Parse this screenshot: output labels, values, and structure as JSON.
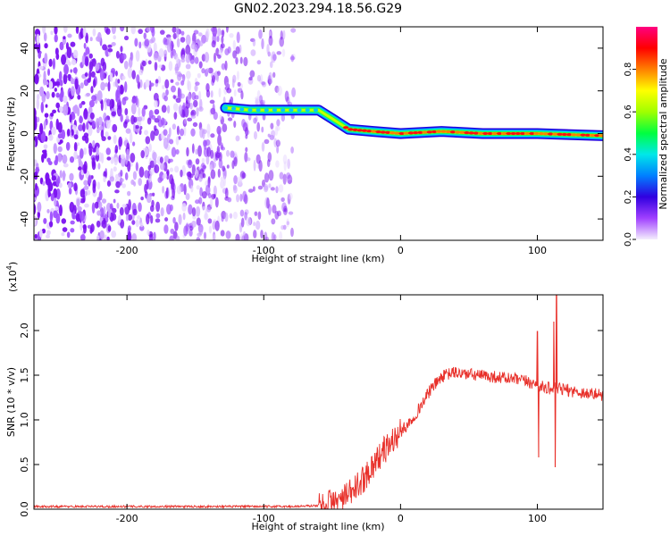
{
  "title": "GN02.2023.294.18.56.G29",
  "chart_data": [
    {
      "type": "heatmap",
      "ylabel": "Frequency (Hz)",
      "xlabel": "Height of straight line (km)",
      "xlim": [
        -268,
        148
      ],
      "ylim": [
        -50,
        50
      ],
      "x_ticks": [
        -200,
        -100,
        0,
        100
      ],
      "y_ticks": [
        -40,
        -20,
        0,
        20,
        40
      ],
      "ridge_points": [
        {
          "x": -128,
          "y": 12
        },
        {
          "x": -110,
          "y": 11
        },
        {
          "x": -90,
          "y": 11
        },
        {
          "x": -72,
          "y": 11
        },
        {
          "x": -60,
          "y": 11
        },
        {
          "x": -50,
          "y": 7
        },
        {
          "x": -38,
          "y": 2
        },
        {
          "x": -20,
          "y": 1
        },
        {
          "x": 0,
          "y": 0
        },
        {
          "x": 30,
          "y": 1
        },
        {
          "x": 60,
          "y": 0
        },
        {
          "x": 100,
          "y": 0
        },
        {
          "x": 148,
          "y": -1
        }
      ],
      "noise_extent_x": [
        -268,
        -78
      ],
      "colorbar": {
        "label": "Normalized spectral amplitude",
        "range": [
          0.0,
          1.0
        ],
        "ticks": [
          0.0,
          0.2,
          0.4,
          0.6,
          0.8
        ],
        "colormap": [
          "#f4eefd",
          "#a040ff",
          "#3000e0",
          "#0080ff",
          "#00e8e8",
          "#00ff40",
          "#a0ff00",
          "#ffff00",
          "#ff8000",
          "#ff0000",
          "#ff0080"
        ]
      }
    },
    {
      "type": "line",
      "ylabel": "SNR (10 * v/v)",
      "xlabel": "Height of straight line (km)",
      "y_multiplier": "(x10",
      "y_multiplier_exp": "4",
      "y_multiplier_close": ")",
      "xlim": [
        -268,
        148
      ],
      "ylim": [
        0,
        24000
      ],
      "x_ticks": [
        -200,
        -100,
        0,
        100
      ],
      "y_ticks": [
        0.0,
        0.5,
        1.0,
        1.5,
        2.0
      ],
      "series": [
        {
          "color": "#e8302a",
          "x": [
            -268,
            -200,
            -120,
            -80,
            -60,
            -50,
            -42,
            -35,
            -28,
            -20,
            -12,
            -5,
            0,
            8,
            15,
            22,
            30,
            38,
            45,
            55,
            70,
            85,
            95,
            100,
            106,
            112,
            120,
            130,
            140,
            148
          ],
          "y": [
            300,
            300,
            300,
            300,
            400,
            700,
            1100,
            2000,
            3200,
            5000,
            6600,
            7800,
            8600,
            10000,
            11600,
            13400,
            14800,
            15300,
            15200,
            15000,
            14800,
            14500,
            14200,
            13800,
            13600,
            13500,
            13400,
            13100,
            12900,
            12800
          ]
        }
      ],
      "spikes": [
        {
          "x": 100,
          "y": 19900
        },
        {
          "x": 101,
          "y": 5800
        },
        {
          "x": 112,
          "y": 21000
        },
        {
          "x": 113,
          "y": 4700
        },
        {
          "x": 114,
          "y": 24000
        }
      ]
    }
  ]
}
